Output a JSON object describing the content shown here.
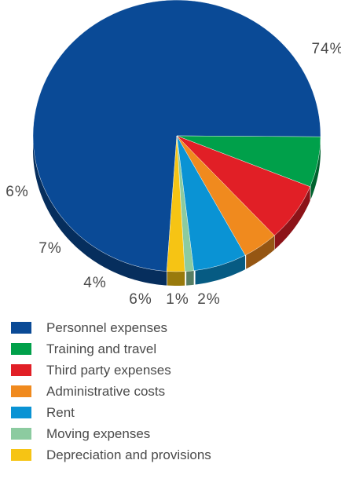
{
  "chart_data": {
    "type": "pie",
    "title": "",
    "slices": [
      {
        "label": "Personnel expenses",
        "value": 74,
        "display": "74%",
        "color": "#0a4a96"
      },
      {
        "label": "Training and travel",
        "value": 6,
        "display": "6%",
        "color": "#00a04a"
      },
      {
        "label": "Third party expenses",
        "value": 7,
        "display": "7%",
        "color": "#e11f26"
      },
      {
        "label": "Administrative costs",
        "value": 4,
        "display": "4%",
        "color": "#f08a1e"
      },
      {
        "label": "Rent",
        "value": 6,
        "display": "6%",
        "color": "#0a93d4"
      },
      {
        "label": "Moving expenses",
        "value": 1,
        "display": "1%",
        "color": "#8ccba0"
      },
      {
        "label": "Depreciation and provisions",
        "value": 2,
        "display": "2%",
        "color": "#f6c414"
      }
    ],
    "legend_position": "bottom-left",
    "style": "3d-tilted"
  }
}
